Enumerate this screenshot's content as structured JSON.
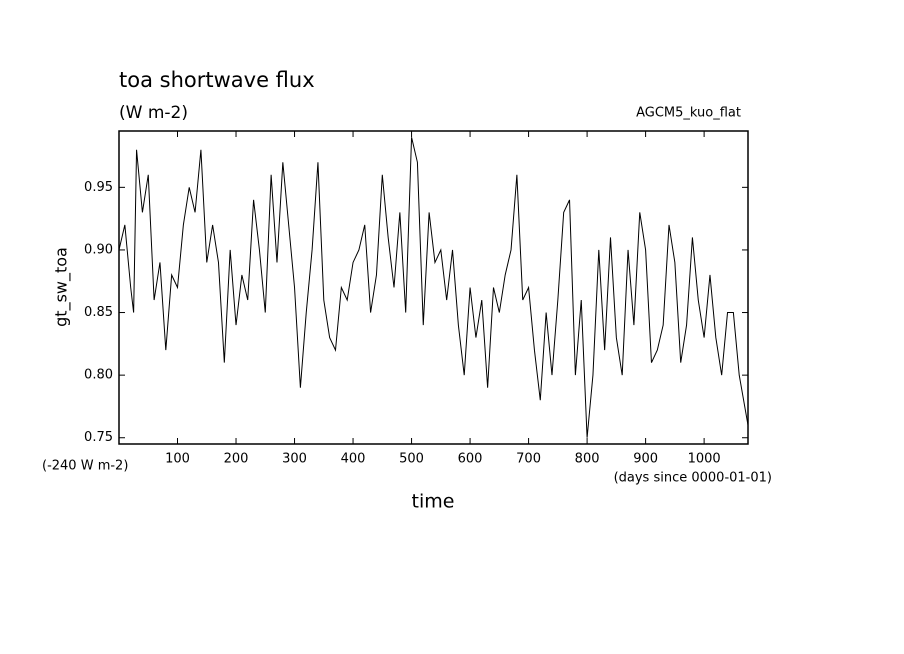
{
  "chart_data": {
    "type": "line",
    "title": "toa shortwave flux",
    "subtitle": "(W m-2)",
    "annotation": "AGCM5_kuo_flat",
    "offset_label": "(-240 W m-2)",
    "x_unit_label": "(days since 0000-01-01)",
    "xlabel": "time",
    "ylabel": "gt_sw_toa",
    "xlim": [
      0,
      1075
    ],
    "ylim": [
      0.745,
      0.995
    ],
    "xticks": [
      100,
      200,
      300,
      400,
      500,
      600,
      700,
      800,
      900,
      1000
    ],
    "yticks": [
      0.75,
      {
        "value": 0.8,
        "label": "0.80"
      },
      0.85,
      {
        "value": 0.9,
        "label": "0.90"
      },
      0.95
    ],
    "x": [
      0,
      10,
      20,
      25,
      30,
      40,
      50,
      60,
      70,
      80,
      90,
      100,
      110,
      120,
      130,
      140,
      150,
      160,
      170,
      180,
      190,
      200,
      210,
      220,
      230,
      240,
      250,
      260,
      270,
      280,
      290,
      300,
      310,
      320,
      330,
      340,
      350,
      360,
      370,
      380,
      390,
      400,
      410,
      420,
      430,
      440,
      450,
      460,
      470,
      480,
      490,
      500,
      510,
      520,
      530,
      540,
      550,
      560,
      570,
      580,
      590,
      600,
      610,
      620,
      630,
      640,
      650,
      660,
      670,
      680,
      690,
      700,
      710,
      720,
      730,
      740,
      750,
      760,
      770,
      780,
      790,
      800,
      810,
      820,
      830,
      840,
      850,
      860,
      870,
      880,
      890,
      900,
      910,
      920,
      930,
      940,
      950,
      960,
      970,
      980,
      990,
      1000,
      1010,
      1020,
      1030,
      1040,
      1050,
      1060,
      1075
    ],
    "series": [
      {
        "color": "#000000",
        "values": [
          0.9,
          0.92,
          0.87,
          0.85,
          0.98,
          0.93,
          0.96,
          0.86,
          0.89,
          0.82,
          0.88,
          0.87,
          0.92,
          0.95,
          0.93,
          0.98,
          0.89,
          0.92,
          0.89,
          0.81,
          0.9,
          0.84,
          0.88,
          0.86,
          0.94,
          0.9,
          0.85,
          0.96,
          0.89,
          0.97,
          0.92,
          0.87,
          0.79,
          0.85,
          0.9,
          0.97,
          0.86,
          0.83,
          0.82,
          0.87,
          0.86,
          0.89,
          0.9,
          0.92,
          0.85,
          0.88,
          0.96,
          0.91,
          0.87,
          0.93,
          0.85,
          0.99,
          0.97,
          0.84,
          0.93,
          0.89,
          0.9,
          0.86,
          0.9,
          0.84,
          0.8,
          0.87,
          0.83,
          0.86,
          0.79,
          0.87,
          0.85,
          0.88,
          0.9,
          0.96,
          0.86,
          0.87,
          0.82,
          0.78,
          0.85,
          0.8,
          0.86,
          0.93,
          0.94,
          0.8,
          0.86,
          0.75,
          0.8,
          0.9,
          0.82,
          0.91,
          0.83,
          0.8,
          0.9,
          0.84,
          0.93,
          0.9,
          0.81,
          0.82,
          0.84,
          0.92,
          0.89,
          0.81,
          0.84,
          0.91,
          0.86,
          0.83,
          0.88,
          0.83,
          0.8,
          0.85,
          0.85,
          0.8,
          0.76
        ]
      }
    ]
  }
}
